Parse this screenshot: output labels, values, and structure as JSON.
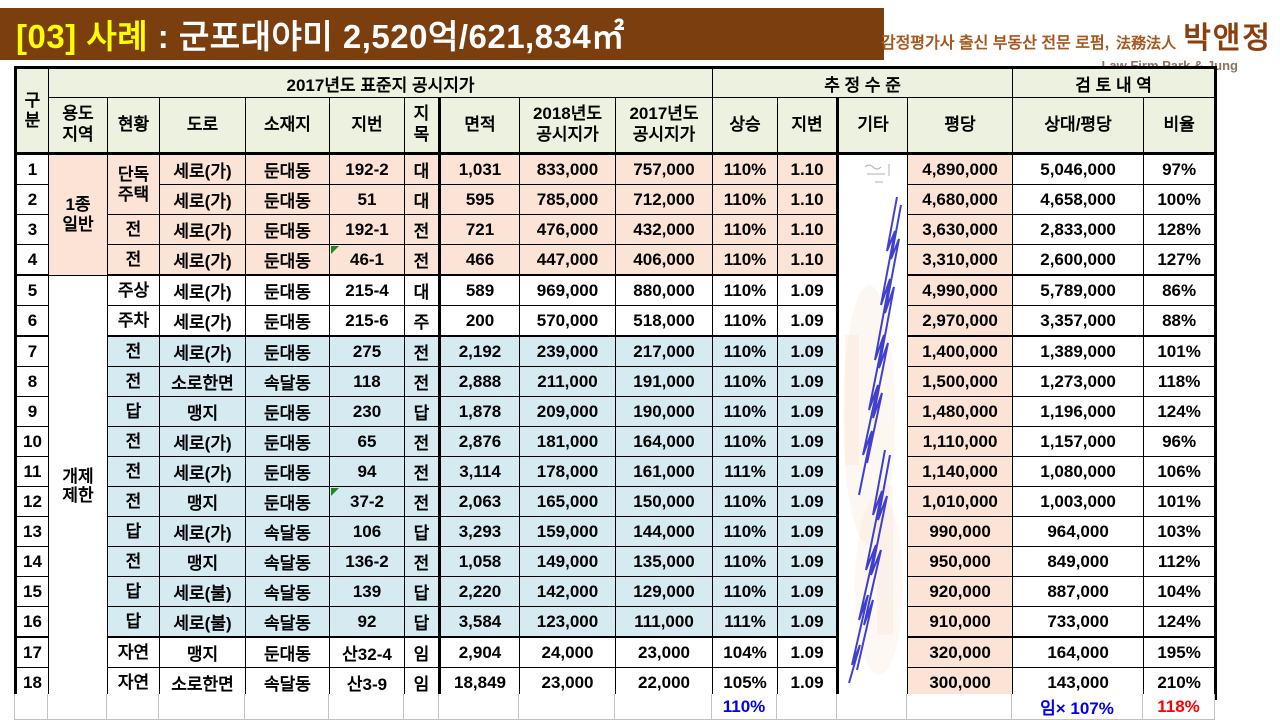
{
  "header": {
    "title_prefix": "[03] 사례",
    "title_rest": " : 군포대야미 2,520억/621,834㎡",
    "logo_line1": "감정평가사 출신 부동산 전문 로펌,",
    "logo_hanja": "法務法人",
    "logo_name": "박앤정",
    "logo_sub": "Law Firm Park & Jung"
  },
  "colors": {
    "banner_brown": "#7B3E0E",
    "title_yellow": "#FFFF00",
    "header_green": "#EDF2E0",
    "row_peach": "#FBE3D6",
    "row_blue": "#D6EAF2",
    "value_blue": "#0000EE",
    "value_red": "#FF0000",
    "value_grey": "#A6A6A6",
    "flag_green": "#1E8A1E"
  },
  "table": {
    "group_headers": {
      "gubun": "구\n분",
      "standard": "2017년도 표준지 공시지가",
      "estimate": "추 정 수 준",
      "review": "검 토 내 역"
    },
    "sub_headers": {
      "yongdo": "용도\n지역",
      "hyun": "현황",
      "doro": "도로",
      "sojaeji": "소재지",
      "jibun": "지번",
      "jimok": "지\n목",
      "myeon": "면적",
      "p2018": "2018년도\n공시지가",
      "p2017": "2017년도\n공시지가",
      "sang": "상승",
      "jibyeon": "지변",
      "gita": "기타",
      "pyeong": "평당",
      "sangdae": "상대/평당",
      "biyul": "비율"
    },
    "rows": [
      {
        "no": "1",
        "yongdo": {
          "text": "1종\n일반",
          "span": 4,
          "bg": "peach"
        },
        "hyun": {
          "text": "단독\n주택",
          "span": 2
        },
        "doro": "세로(가)",
        "sojaeji": "둔대동",
        "jibun": "192-2",
        "jimok": "대",
        "myeon": "1,031",
        "p2018": "833,000",
        "p2017": "757,000",
        "sang": "110%",
        "jibyeon": "1.10",
        "gita": {
          "span": 18
        },
        "pyeong": "4,890,000",
        "sangdae": "5,046,000",
        "biyul": "97%",
        "bg": "peach"
      },
      {
        "no": "2",
        "doro": "세로(가)",
        "sojaeji": "둔대동",
        "jibun": "51",
        "jimok": "대",
        "myeon": "595",
        "p2018": "785,000",
        "p2017": "712,000",
        "sang": "110%",
        "jibyeon": "1.10",
        "pyeong": "4,680,000",
        "sangdae": "4,658,000",
        "biyul": "100%",
        "bg": "peach"
      },
      {
        "no": "3",
        "hyun": "전",
        "doro": "세로(가)",
        "sojaeji": "둔대동",
        "jibun": "192-1",
        "jimok": "전",
        "myeon": "721",
        "p2018": "476,000",
        "p2017": "432,000",
        "sang": "110%",
        "jibyeon": "1.10",
        "pyeong": "3,630,000",
        "sangdae": "2,833,000",
        "biyul": "128%",
        "biyul_gray": true,
        "bg": "peach"
      },
      {
        "no": "4",
        "hyun": "전",
        "doro": "세로(가)",
        "sojaeji": "둔대동",
        "jibun": "46-1",
        "flag": true,
        "jimok": "전",
        "myeon": "466",
        "p2018": "447,000",
        "p2017": "406,000",
        "sang": "110%",
        "jibyeon": "1.10",
        "pyeong": "3,310,000",
        "sangdae": "2,600,000",
        "biyul": "127%",
        "biyul_gray": true,
        "bg": "peach",
        "sep": true
      },
      {
        "no": "5",
        "yongdo": {
          "text": "개제\n제한",
          "span": 14,
          "bg": "white"
        },
        "hyun": "주상",
        "doro": "세로(가)",
        "sojaeji": "둔대동",
        "jibun": "215-4",
        "jimok": "대",
        "myeon": "589",
        "p2018": "969,000",
        "p2017": "880,000",
        "sang": "110%",
        "jibyeon": "1.09",
        "pyeong": "4,990,000",
        "sangdae": "5,789,000",
        "biyul": "86%",
        "bg": "white"
      },
      {
        "no": "6",
        "hyun": "주차",
        "doro": "세로(가)",
        "sojaeji": "둔대동",
        "jibun": "215-6",
        "jimok": "주",
        "myeon": "200",
        "p2018": "570,000",
        "p2017": "518,000",
        "sang": "110%",
        "jibyeon": "1.09",
        "pyeong": "2,970,000",
        "sangdae": "3,357,000",
        "biyul": "88%",
        "bg": "white",
        "sep": true
      },
      {
        "no": "7",
        "hyun": "전",
        "doro": "세로(가)",
        "sojaeji": "둔대동",
        "jibun": "275",
        "jimok": "전",
        "myeon": "2,192",
        "p2018": "239,000",
        "p2017": "217,000",
        "sang": "110%",
        "jibyeon": "1.09",
        "pyeong": "1,400,000",
        "sangdae": "1,389,000",
        "biyul": "101%",
        "bg": "blue"
      },
      {
        "no": "8",
        "hyun": "전",
        "doro": "소로한면",
        "sojaeji": "속달동",
        "jibun": "118",
        "jimok": "전",
        "myeon": "2,888",
        "p2018": "211,000",
        "p2017": "191,000",
        "sang": "110%",
        "jibyeon": "1.09",
        "pyeong": "1,500,000",
        "sangdae": "1,273,000",
        "biyul": "118%",
        "bg": "blue"
      },
      {
        "no": "9",
        "hyun": "답",
        "doro": "맹지",
        "sojaeji": "둔대동",
        "jibun": "230",
        "jimok": "답",
        "myeon": "1,878",
        "p2018": "209,000",
        "p2017": "190,000",
        "sang": "110%",
        "jibyeon": "1.09",
        "pyeong": "1,480,000",
        "sangdae": "1,196,000",
        "biyul": "124%",
        "bg": "blue"
      },
      {
        "no": "10",
        "hyun": "전",
        "doro": "세로(가)",
        "sojaeji": "둔대동",
        "jibun": "65",
        "jimok": "전",
        "myeon": "2,876",
        "p2018": "181,000",
        "p2017": "164,000",
        "sang": "110%",
        "jibyeon": "1.09",
        "pyeong": "1,110,000",
        "sangdae": "1,157,000",
        "biyul": "96%",
        "bg": "blue"
      },
      {
        "no": "11",
        "hyun": "전",
        "doro": "세로(가)",
        "sojaeji": "둔대동",
        "jibun": "94",
        "jimok": "전",
        "myeon": "3,114",
        "p2018": "178,000",
        "p2017": "161,000",
        "sang": "111%",
        "jibyeon": "1.09",
        "pyeong": "1,140,000",
        "sangdae": "1,080,000",
        "biyul": "106%",
        "bg": "blue"
      },
      {
        "no": "12",
        "hyun": "전",
        "doro": "맹지",
        "sojaeji": "둔대동",
        "jibun": "37-2",
        "flag": true,
        "jimok": "전",
        "myeon": "2,063",
        "p2018": "165,000",
        "p2017": "150,000",
        "sang": "110%",
        "jibyeon": "1.09",
        "pyeong": "1,010,000",
        "sangdae": "1,003,000",
        "biyul": "101%",
        "bg": "blue"
      },
      {
        "no": "13",
        "hyun": "답",
        "doro": "세로(가)",
        "sojaeji": "속달동",
        "jibun": "106",
        "jimok": "답",
        "myeon": "3,293",
        "p2018": "159,000",
        "p2017": "144,000",
        "sang": "110%",
        "jibyeon": "1.09",
        "pyeong": "990,000",
        "sangdae": "964,000",
        "biyul": "103%",
        "bg": "blue"
      },
      {
        "no": "14",
        "hyun": "전",
        "doro": "맹지",
        "sojaeji": "속달동",
        "jibun": "136-2",
        "jimok": "전",
        "myeon": "1,058",
        "p2018": "149,000",
        "p2017": "135,000",
        "sang": "110%",
        "jibyeon": "1.09",
        "pyeong": "950,000",
        "sangdae": "849,000",
        "biyul": "112%",
        "bg": "blue"
      },
      {
        "no": "15",
        "hyun": "답",
        "doro": "세로(불)",
        "sojaeji": "속달동",
        "jibun": "139",
        "jimok": "답",
        "myeon": "2,220",
        "p2018": "142,000",
        "p2017": "129,000",
        "sang": "110%",
        "jibyeon": "1.09",
        "pyeong": "920,000",
        "sangdae": "887,000",
        "biyul": "104%",
        "bg": "blue"
      },
      {
        "no": "16",
        "hyun": "답",
        "doro": "세로(불)",
        "sojaeji": "속달동",
        "jibun": "92",
        "jimok": "답",
        "myeon": "3,584",
        "p2018": "123,000",
        "p2017": "111,000",
        "sang": "111%",
        "jibyeon": "1.09",
        "pyeong": "910,000",
        "sangdae": "733,000",
        "biyul": "124%",
        "bg": "blue",
        "sep": true
      },
      {
        "no": "17",
        "hyun": "자연",
        "doro": "맹지",
        "sojaeji": "둔대동",
        "jibun": "산32-4",
        "jimok": "임",
        "myeon": "2,904",
        "p2018": "24,000",
        "p2017": "23,000",
        "sang": "104%",
        "jibyeon": "1.09",
        "pyeong": "320,000",
        "sangdae": "164,000",
        "biyul": "195%",
        "biyul_gray": true,
        "bg": "white"
      },
      {
        "no": "18",
        "hyun": "자연",
        "doro": "소로한면",
        "sojaeji": "속달동",
        "jibun": "산3-9",
        "jimok": "임",
        "myeon": "18,849",
        "small": true,
        "p2018": "23,000",
        "p2017": "22,000",
        "sang": "105%",
        "jibyeon": "1.09",
        "pyeong": "300,000",
        "sangdae": "143,000",
        "biyul": "210%",
        "biyul_gray": true,
        "bg": "white"
      }
    ],
    "footer": {
      "sang": "110%",
      "sangdae": "임× 107%",
      "biyul": "118%"
    }
  }
}
